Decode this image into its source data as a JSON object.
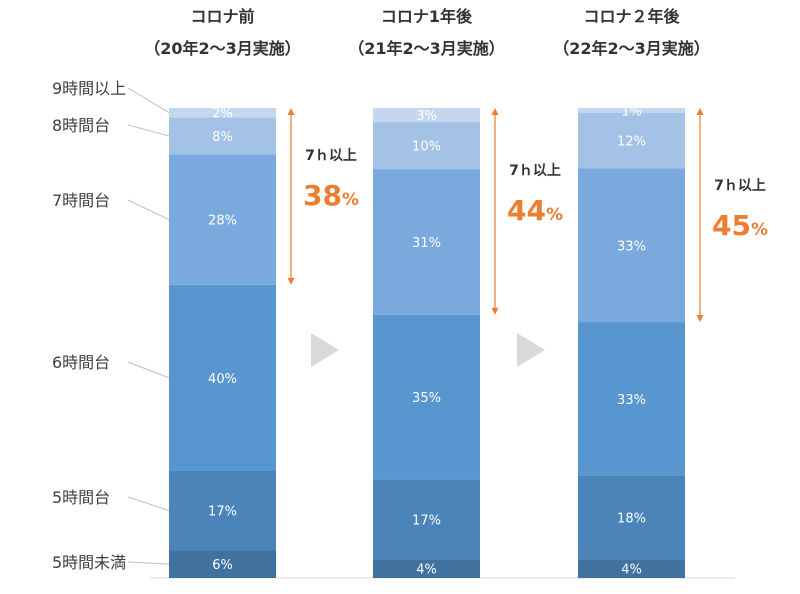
{
  "chart_data": {
    "type": "bar",
    "stacked": true,
    "percent_stacked": true,
    "categories": [
      "コロナ前",
      "コロナ1年後",
      "コロナ２年後"
    ],
    "category_subtitles": [
      "（20年2～3月実施）",
      "（21年2～3月実施）",
      "（22年2～3月実施）"
    ],
    "series": [
      {
        "name": "5時間未満",
        "values": [
          6,
          4,
          4
        ],
        "color": "#41729F"
      },
      {
        "name": "5時間台",
        "values": [
          17,
          17,
          18
        ],
        "color": "#4A84B9"
      },
      {
        "name": "6時間台",
        "values": [
          40,
          35,
          33
        ],
        "color": "#5796CF"
      },
      {
        "name": "7時間台",
        "values": [
          28,
          31,
          33
        ],
        "color": "#7AAADD"
      },
      {
        "name": "8時間台",
        "values": [
          8,
          10,
          12
        ],
        "color": "#A3C2E6"
      },
      {
        "name": "9時間以上",
        "values": [
          2,
          3,
          1
        ],
        "color": "#C5D7EF"
      }
    ],
    "value_suffix": "%",
    "annotations": [
      {
        "text": "7ｈ以上",
        "value": "38",
        "unit": "%"
      },
      {
        "text": "7ｈ以上",
        "value": "44",
        "unit": "%"
      },
      {
        "text": "7ｈ以上",
        "value": "45",
        "unit": "%"
      }
    ],
    "accent_color": "#ED7D31",
    "arrow_color": "#D9D9D9"
  }
}
